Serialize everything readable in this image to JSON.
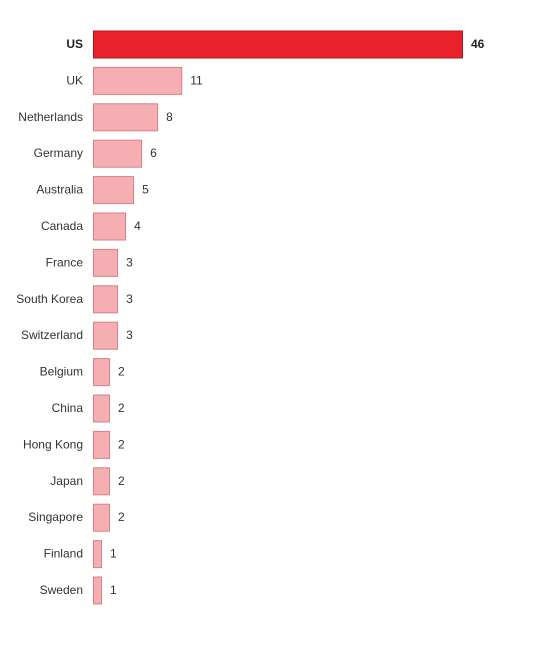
{
  "chart_data": {
    "type": "bar",
    "orientation": "horizontal",
    "categories": [
      "US",
      "UK",
      "Netherlands",
      "Germany",
      "Australia",
      "Canada",
      "France",
      "South Korea",
      "Switzerland",
      "Belgium",
      "China",
      "Hong Kong",
      "Japan",
      "Singapore",
      "Finland",
      "Sweden"
    ],
    "values": [
      46,
      11,
      8,
      6,
      5,
      4,
      3,
      3,
      3,
      2,
      2,
      2,
      2,
      2,
      1,
      1
    ],
    "highlighted_category": "US",
    "title": "",
    "xlabel": "",
    "ylabel": "",
    "xlim": [
      0,
      46
    ],
    "grid": false,
    "colors": {
      "highlight_fill": "#e8212b",
      "highlight_stroke": "#b3161e",
      "bar_fill": "#f5aeb2",
      "bar_stroke": "#d98087"
    }
  }
}
